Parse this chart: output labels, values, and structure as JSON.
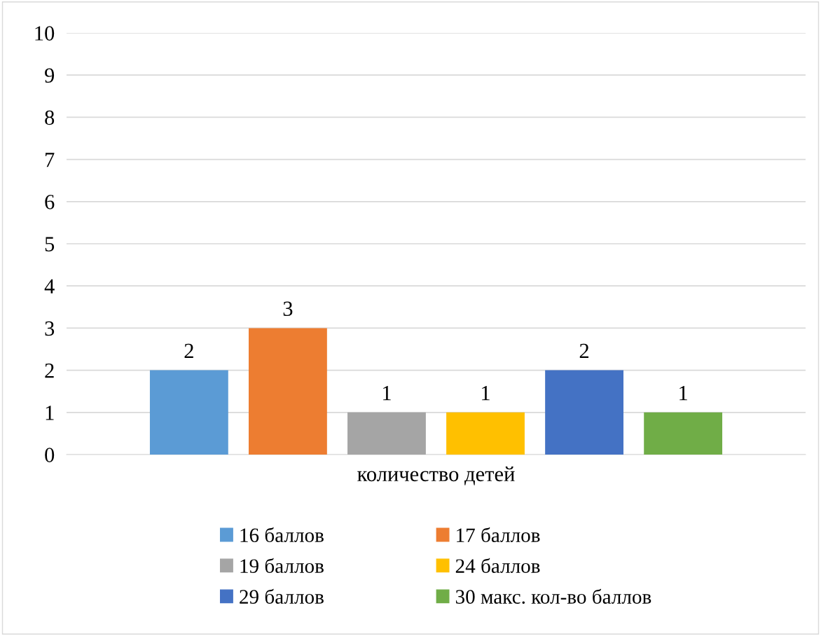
{
  "chart_data": {
    "type": "bar",
    "categories": [
      "количество детей"
    ],
    "series": [
      {
        "name": "16 баллов",
        "color": "#5b9bd5",
        "values": [
          2
        ]
      },
      {
        "name": "17 баллов",
        "color": "#ed7d31",
        "values": [
          3
        ]
      },
      {
        "name": "19 баллов",
        "color": "#a5a5a5",
        "values": [
          1
        ]
      },
      {
        "name": "24 баллов",
        "color": "#ffc000",
        "values": [
          1
        ]
      },
      {
        "name": "29 баллов",
        "color": "#4472c4",
        "values": [
          2
        ]
      },
      {
        "name": "30 макс. кол-во баллов",
        "color": "#70ad47",
        "values": [
          1
        ]
      }
    ],
    "ylim": [
      0,
      10
    ],
    "yticks": [
      0,
      1,
      2,
      3,
      4,
      5,
      6,
      7,
      8,
      9,
      10
    ],
    "grid": "y",
    "legend": "bottom",
    "data_labels": true
  }
}
